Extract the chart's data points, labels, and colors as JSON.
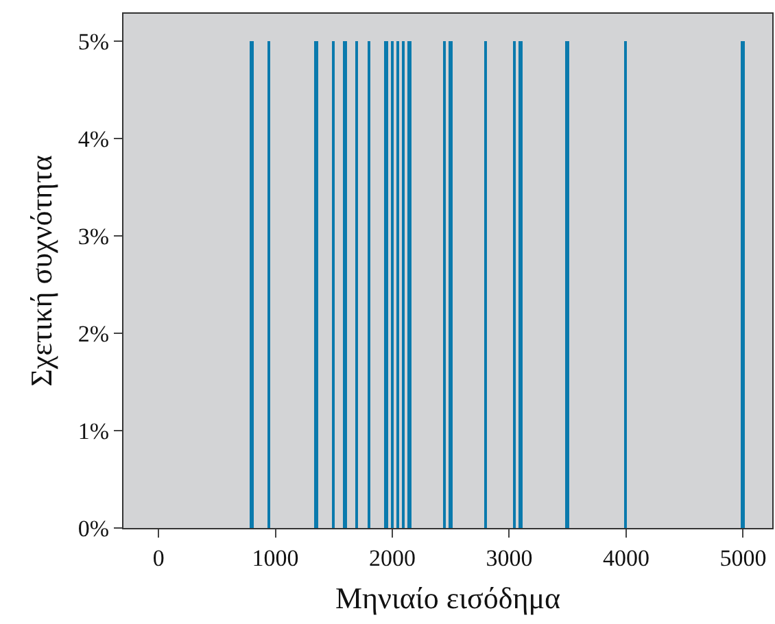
{
  "chart_data": {
    "type": "bar",
    "x": [
      800,
      950,
      1350,
      1500,
      1600,
      1700,
      1800,
      1950,
      2000,
      2050,
      2100,
      2150,
      2450,
      2500,
      2800,
      3050,
      3100,
      3500,
      4000,
      5000
    ],
    "values": [
      5,
      5,
      5,
      5,
      5,
      5,
      5,
      5,
      5,
      5,
      5,
      5,
      5,
      5,
      5,
      5,
      5,
      5,
      5,
      5
    ],
    "color": "#0a7aad",
    "xlabel": "Μηνιαίο εισόδημα",
    "ylabel": "Σχετική συχνότητα",
    "xlim": [
      -300,
      5250
    ],
    "xticks": [
      0,
      1000,
      2000,
      3000,
      4000,
      5000
    ],
    "ylim": [
      0,
      5.28
    ],
    "yticks": [
      {
        "value": 0,
        "label": "0%"
      },
      {
        "value": 1,
        "label": "1%"
      },
      {
        "value": 2,
        "label": "2%"
      },
      {
        "value": 3,
        "label": "3%"
      },
      {
        "value": 4,
        "label": "4%"
      },
      {
        "value": 5,
        "label": "5%"
      }
    ],
    "grid": false
  }
}
